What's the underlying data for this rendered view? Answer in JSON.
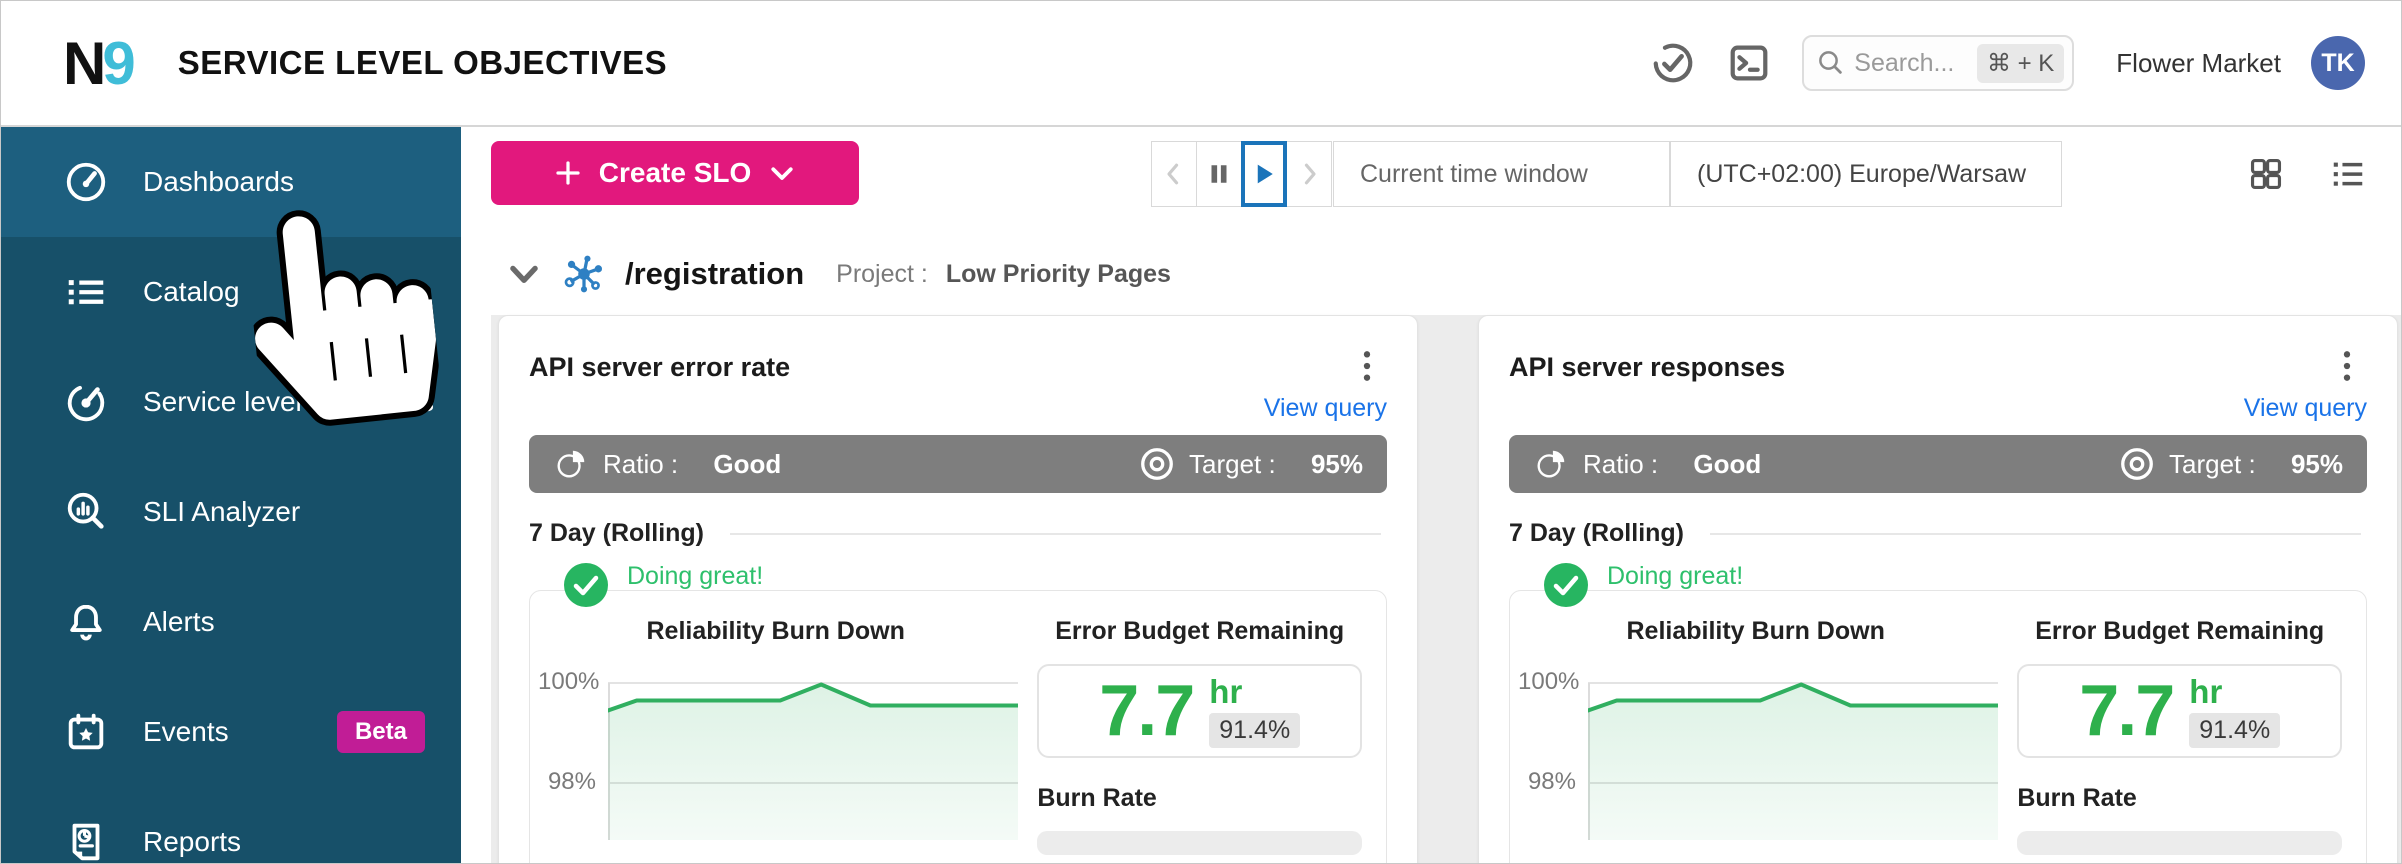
{
  "header": {
    "logo_n": "N",
    "logo_9": "9",
    "title": "SERVICE LEVEL OBJECTIVES",
    "search_placeholder": "Search...",
    "search_shortcut": "⌘ + K",
    "org": "Flower Market",
    "avatar_initials": "TK",
    "icons": [
      "status-check-icon",
      "terminal-icon",
      "search-icon"
    ]
  },
  "sidebar": {
    "items": [
      {
        "label": "Dashboards",
        "icon": "speedometer-icon",
        "active": true
      },
      {
        "label": "Catalog",
        "icon": "list-icon"
      },
      {
        "label": "Service level objectives",
        "icon": "target-gauge-icon"
      },
      {
        "label": "SLI Analyzer",
        "icon": "magnifier-chart-icon"
      },
      {
        "label": "Alerts",
        "icon": "bell-icon"
      },
      {
        "label": "Events",
        "icon": "calendar-star-icon",
        "badge": "Beta"
      },
      {
        "label": "Reports",
        "icon": "report-doc-icon"
      }
    ]
  },
  "toolbar": {
    "create_slo_label": "Create SLO",
    "time_window_label": "Current time window",
    "timezone_label": "(UTC+02:00) Europe/Warsaw",
    "view_toggles": [
      "grid-view-icon",
      "list-view-icon"
    ],
    "playback": [
      "prev-disabled",
      "pause",
      "play-selected",
      "next-disabled"
    ]
  },
  "section": {
    "name": "/registration",
    "project_label": "Project :",
    "project_value": "Low Priority Pages"
  },
  "cards": [
    {
      "title": "API server error rate",
      "view_query": "View query",
      "ratio_label": "Ratio :",
      "ratio_value": "Good",
      "target_label": "Target :",
      "target_value": "95%",
      "window": "7 Day (Rolling)",
      "status": "Doing great!",
      "chart_title": "Reliability Burn Down",
      "budget_title": "Error Budget Remaining",
      "budget_value": "7.7",
      "budget_unit": "hr",
      "budget_pct": "91.4%",
      "burn_rate_title": "Burn Rate",
      "y_top": "100%",
      "y_bottom": "98%"
    },
    {
      "title": "API server responses",
      "view_query": "View query",
      "ratio_label": "Ratio :",
      "ratio_value": "Good",
      "target_label": "Target :",
      "target_value": "95%",
      "window": "7 Day (Rolling)",
      "status": "Doing great!",
      "chart_title": "Reliability Burn Down",
      "budget_title": "Error Budget Remaining",
      "budget_value": "7.7",
      "budget_unit": "hr",
      "budget_pct": "91.4%",
      "burn_rate_title": "Burn Rate",
      "y_top": "100%",
      "y_bottom": "98%"
    }
  ],
  "chart_data": [
    {
      "type": "area",
      "title": "Reliability Burn Down",
      "card": "API server error rate",
      "yticks": [
        "100%",
        "98%"
      ],
      "gridlines_pct": [
        100,
        98
      ],
      "ylim_visible": [
        97.7,
        100.1
      ],
      "points": [
        {
          "x": 0.0,
          "pct": 99.45
        },
        {
          "x": 0.07,
          "pct": 99.65
        },
        {
          "x": 0.42,
          "pct": 99.65
        },
        {
          "x": 0.52,
          "pct": 99.97
        },
        {
          "x": 0.64,
          "pct": 99.55
        },
        {
          "x": 1.0,
          "pct": 99.55
        }
      ]
    },
    {
      "type": "area",
      "title": "Reliability Burn Down",
      "card": "API server responses",
      "yticks": [
        "100%",
        "98%"
      ],
      "gridlines_pct": [
        100,
        98
      ],
      "ylim_visible": [
        97.7,
        100.1
      ],
      "points": [
        {
          "x": 0.0,
          "pct": 99.45
        },
        {
          "x": 0.07,
          "pct": 99.65
        },
        {
          "x": 0.42,
          "pct": 99.65
        },
        {
          "x": 0.52,
          "pct": 99.97
        },
        {
          "x": 0.64,
          "pct": 99.55
        },
        {
          "x": 1.0,
          "pct": 99.55
        }
      ]
    }
  ],
  "colors": {
    "accent_pink": "#e2187d",
    "beta_magenta": "#c11d96",
    "sidebar_bg": "#175069",
    "sidebar_active_bg": "#1d5f7f",
    "chart_green": "#30af60",
    "budget_green": "#2eb04c",
    "status_green": "#2ec06c",
    "link_blue": "#1a73e8",
    "play_blue": "#1b74ba",
    "avatar_blue": "#4a67ae",
    "logo_cyan": "#3fbdd8",
    "ratio_bar_gray": "#7e7e7e"
  }
}
